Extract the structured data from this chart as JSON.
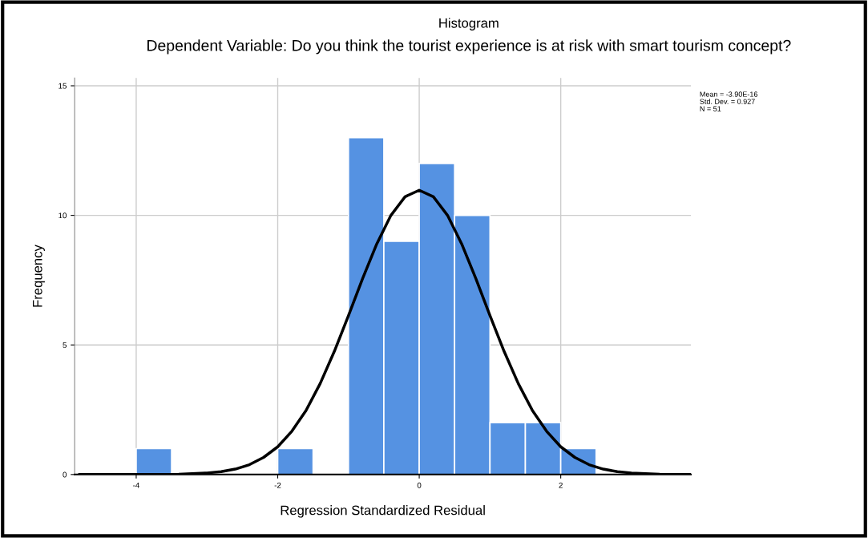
{
  "chart_data": {
    "type": "histogram",
    "title": "Histogram",
    "subtitle": "Dependent Variable: Do you think the tourist experience is at risk with smart tourism concept?",
    "xlabel": "Regression Standardized Residual",
    "ylabel": "Frequency",
    "xlim": [
      -4.87,
      3.84
    ],
    "ylim": [
      0,
      15.3
    ],
    "xticks": [
      -4,
      -2,
      0,
      2
    ],
    "yticks": [
      0,
      5,
      10,
      15
    ],
    "grid": true,
    "annotations": [
      "Mean = -3.90E-16",
      "Std. Dev. = 0.927",
      "N = 51"
    ],
    "series": [
      {
        "color": "#5592e2",
        "bins": [
          -4,
          -3.5,
          -3,
          -2.5,
          -2,
          -1.5,
          -1,
          -0.5,
          0,
          0.5,
          1,
          1.5,
          2,
          2.5
        ],
        "values": [
          1,
          0,
          0,
          0,
          1,
          0,
          13,
          9,
          12,
          10,
          2,
          2,
          1
        ]
      },
      {
        "type": "line",
        "color": "#000000",
        "x": [
          -4.8,
          -4.2,
          -3.8,
          -3.4,
          -3.0,
          -2.8,
          -2.6,
          -2.4,
          -2.2,
          -2.0,
          -1.8,
          -1.6,
          -1.4,
          -1.2,
          -1.0,
          -0.8,
          -0.6,
          -0.4,
          -0.2,
          0,
          0.2,
          0.4,
          0.6,
          0.8,
          1.0,
          1.2,
          1.4,
          1.6,
          1.8,
          2.0,
          2.2,
          2.4,
          2.6,
          2.8,
          3.0,
          3.4,
          3.84
        ],
        "values": [
          0,
          0,
          0,
          0.01,
          0.06,
          0.11,
          0.21,
          0.38,
          0.66,
          1.07,
          1.67,
          2.47,
          3.51,
          4.75,
          6.13,
          7.56,
          8.9,
          10.0,
          10.72,
          10.97,
          10.72,
          10.0,
          8.9,
          7.56,
          6.13,
          4.75,
          3.51,
          2.47,
          1.67,
          1.07,
          0.66,
          0.38,
          0.21,
          0.11,
          0.06,
          0.01,
          0
        ]
      }
    ]
  }
}
